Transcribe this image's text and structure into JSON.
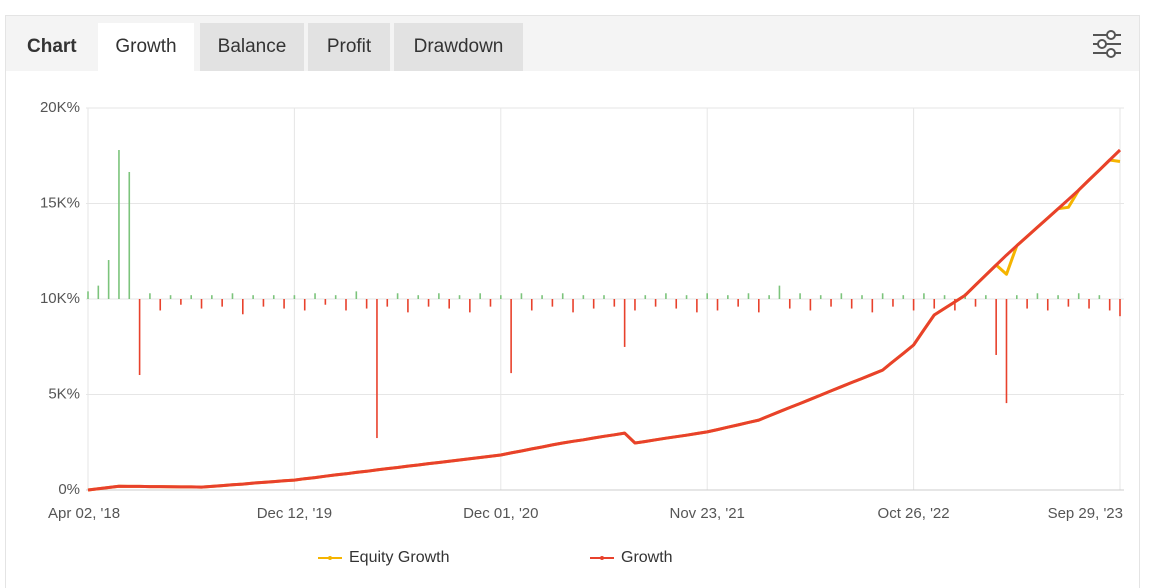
{
  "tabs": {
    "label": "Chart",
    "items": [
      "Growth",
      "Balance",
      "Profit",
      "Drawdown"
    ],
    "active": 0
  },
  "chart_data": {
    "type": "line",
    "categories": [
      "Apr 02, '18",
      null,
      null,
      null,
      null,
      null,
      null,
      null,
      null,
      null,
      null,
      null,
      null,
      null,
      null,
      null,
      null,
      null,
      null,
      null,
      "Dec 12, '19",
      null,
      null,
      null,
      null,
      null,
      null,
      null,
      null,
      null,
      null,
      null,
      null,
      null,
      null,
      null,
      null,
      null,
      null,
      null,
      "Dec 01, '20",
      null,
      null,
      null,
      null,
      null,
      null,
      null,
      null,
      null,
      null,
      null,
      null,
      null,
      null,
      null,
      null,
      null,
      null,
      null,
      "Nov 23, '21",
      null,
      null,
      null,
      null,
      null,
      null,
      null,
      null,
      null,
      null,
      null,
      null,
      null,
      null,
      null,
      null,
      null,
      null,
      null,
      "Oct 26, '22",
      null,
      null,
      null,
      null,
      null,
      null,
      null,
      null,
      null,
      null,
      null,
      null,
      null,
      null,
      null,
      null,
      null,
      null,
      null,
      "Sep 29, '23"
    ],
    "series": [
      {
        "name": "Equity Growth",
        "color": "#f5b400",
        "values": [
          0,
          70,
          130,
          200,
          190,
          190,
          180,
          180,
          170,
          160,
          160,
          150,
          190,
          230,
          270,
          310,
          360,
          400,
          440,
          480,
          520,
          590,
          650,
          720,
          790,
          850,
          920,
          980,
          1050,
          1120,
          1180,
          1250,
          1310,
          1380,
          1440,
          1510,
          1570,
          1640,
          1700,
          1770,
          1830,
          1940,
          2040,
          2150,
          2250,
          2360,
          2460,
          2550,
          2630,
          2720,
          2810,
          2890,
          2980,
          2460,
          2540,
          2630,
          2710,
          2790,
          2870,
          2960,
          3040,
          3160,
          3290,
          3410,
          3540,
          3660,
          3880,
          4100,
          4320,
          4530,
          4750,
          4970,
          5190,
          5410,
          5630,
          5840,
          6060,
          6280,
          6720,
          7150,
          7590,
          8380,
          9160,
          9510,
          9850,
          10200,
          10730,
          11250,
          11780,
          11300,
          12790,
          13270,
          13760,
          14240,
          14730,
          14800,
          15700,
          16230,
          16750,
          17280,
          17200
        ]
      },
      {
        "name": "Growth",
        "color": "#e8412c",
        "values": [
          0,
          70,
          130,
          200,
          190,
          190,
          180,
          180,
          170,
          160,
          160,
          150,
          190,
          230,
          270,
          310,
          360,
          400,
          440,
          480,
          520,
          590,
          650,
          720,
          790,
          850,
          920,
          980,
          1050,
          1120,
          1180,
          1250,
          1310,
          1380,
          1440,
          1510,
          1570,
          1640,
          1700,
          1770,
          1830,
          1940,
          2040,
          2150,
          2250,
          2360,
          2460,
          2550,
          2630,
          2720,
          2810,
          2890,
          2980,
          2460,
          2540,
          2630,
          2710,
          2790,
          2870,
          2960,
          3040,
          3160,
          3290,
          3410,
          3540,
          3660,
          3880,
          4100,
          4320,
          4530,
          4750,
          4970,
          5190,
          5410,
          5630,
          5840,
          6060,
          6280,
          6720,
          7150,
          7590,
          8380,
          9160,
          9510,
          9850,
          10200,
          10730,
          11250,
          11780,
          12300,
          12790,
          13270,
          13760,
          14240,
          14730,
          15210,
          15700,
          16230,
          16750,
          17280,
          17800
        ]
      }
    ],
    "bars": {
      "baseline": 10000,
      "positive_color": "#7cc47c",
      "negative_color": "#e8412c",
      "values": [
        10400,
        10700,
        12040,
        17800,
        16650,
        6020,
        10300,
        9400,
        10200,
        9700,
        10200,
        9500,
        10200,
        9600,
        10300,
        9200,
        10200,
        9600,
        10200,
        9500,
        10200,
        9400,
        10300,
        9700,
        10200,
        9400,
        10400,
        9500,
        2720,
        9600,
        10300,
        9300,
        10200,
        9600,
        10300,
        9500,
        10200,
        9300,
        10300,
        9600,
        10200,
        6120,
        10300,
        9400,
        10200,
        9600,
        10300,
        9300,
        10200,
        9500,
        10200,
        9600,
        7490,
        9400,
        10200,
        9600,
        10300,
        9500,
        10200,
        9300,
        10300,
        9400,
        10200,
        9600,
        10300,
        9300,
        10200,
        10700,
        9500,
        10300,
        9400,
        10200,
        9600,
        10300,
        9500,
        10200,
        9300,
        10300,
        9600,
        10200,
        9400,
        10300,
        9500,
        10200,
        9400,
        10300,
        9600,
        10200,
        7070,
        4550,
        10200,
        9500,
        10300,
        9400,
        10200,
        9600,
        10300,
        9500,
        10200,
        9400,
        9100
      ]
    },
    "ylim": [
      0,
      20000
    ],
    "yticks": [
      {
        "value": 0,
        "label": "0%"
      },
      {
        "value": 5000,
        "label": "5K%"
      },
      {
        "value": 10000,
        "label": "10K%"
      },
      {
        "value": 15000,
        "label": "15K%"
      },
      {
        "value": 20000,
        "label": "20K%"
      }
    ],
    "grid": true,
    "legend": "bottom"
  }
}
